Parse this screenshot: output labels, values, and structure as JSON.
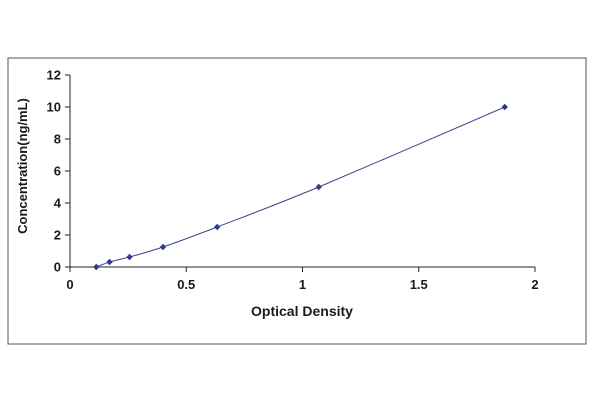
{
  "chart_data": {
    "type": "scatter",
    "title": "",
    "xlabel": "Optical Density",
    "ylabel": "Concentration(ng/mL)",
    "xlim": [
      0,
      2
    ],
    "ylim": [
      0,
      12
    ],
    "x_ticks": [
      0,
      0.5,
      1,
      1.5,
      2
    ],
    "x_tick_labels": [
      "0",
      "0.5",
      "1",
      "1.5",
      "2"
    ],
    "y_ticks": [
      0,
      2,
      4,
      6,
      8,
      10,
      12
    ],
    "y_tick_labels": [
      "0",
      "2",
      "4",
      "6",
      "8",
      "10",
      "12"
    ],
    "grid": false,
    "legend": "none",
    "series": [
      {
        "marker": "diamond",
        "fit_line": "smooth",
        "points": [
          {
            "x": 0.113,
            "y": 0
          },
          {
            "x": 0.17,
            "y": 0.3125
          },
          {
            "x": 0.256,
            "y": 0.625
          },
          {
            "x": 0.4,
            "y": 1.25
          },
          {
            "x": 0.633,
            "y": 2.5
          },
          {
            "x": 1.07,
            "y": 5
          },
          {
            "x": 1.87,
            "y": 10
          }
        ]
      }
    ],
    "colors": {
      "marker": "#2f3a8c",
      "curve": "#3a4490",
      "axis": "#222222",
      "frame": "#555555"
    }
  }
}
